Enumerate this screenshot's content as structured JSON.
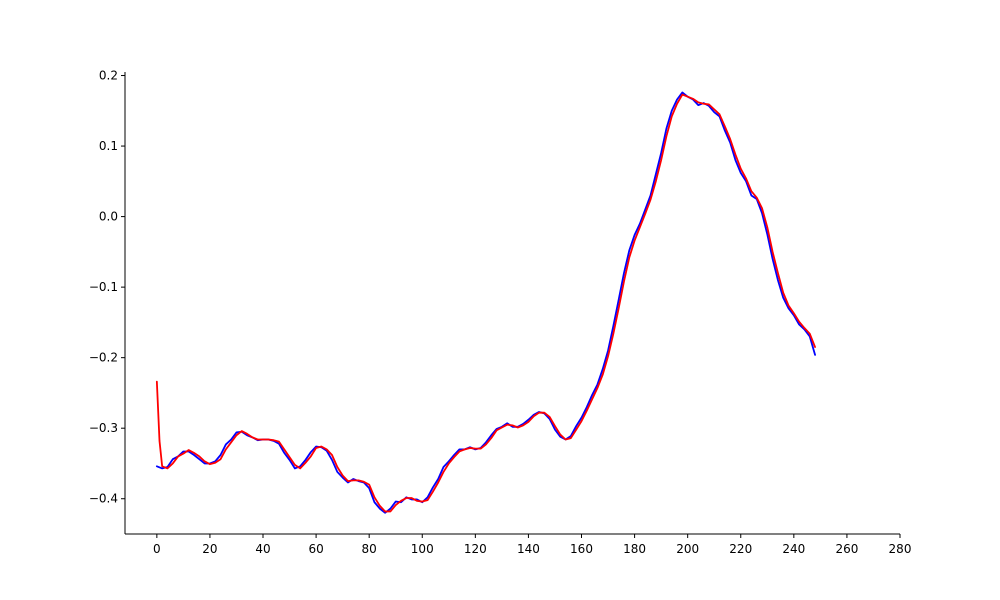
{
  "chart_data": {
    "type": "line",
    "title": "",
    "xlabel": "",
    "ylabel": "",
    "xlim": [
      -12,
      280
    ],
    "ylim": [
      -0.45,
      0.205
    ],
    "xticks": [
      0,
      20,
      40,
      60,
      80,
      100,
      120,
      140,
      160,
      180,
      200,
      220,
      240,
      260,
      280
    ],
    "xtick_labels": [
      "0",
      "20",
      "40",
      "60",
      "80",
      "100",
      "120",
      "140",
      "160",
      "180",
      "200",
      "220",
      "240",
      "260",
      "280"
    ],
    "yticks": [
      -0.4,
      -0.3,
      -0.2,
      -0.1,
      0.0,
      0.1,
      0.2
    ],
    "ytick_labels": [
      "−0.4",
      "−0.3",
      "−0.2",
      "−0.1",
      "0.0",
      "0.1",
      "0.2"
    ],
    "grid": false,
    "spines": [
      "left",
      "bottom"
    ],
    "series": [
      {
        "color": "#0000ff",
        "points": [
          [
            0,
            -0.354
          ],
          [
            2,
            -0.357
          ],
          [
            4,
            -0.355
          ],
          [
            6,
            -0.344
          ],
          [
            8,
            -0.34
          ],
          [
            10,
            -0.333
          ],
          [
            12,
            -0.333
          ],
          [
            14,
            -0.338
          ],
          [
            16,
            -0.344
          ],
          [
            18,
            -0.35
          ],
          [
            20,
            -0.35
          ],
          [
            22,
            -0.347
          ],
          [
            24,
            -0.338
          ],
          [
            26,
            -0.323
          ],
          [
            28,
            -0.316
          ],
          [
            30,
            -0.306
          ],
          [
            32,
            -0.305
          ],
          [
            34,
            -0.31
          ],
          [
            36,
            -0.313
          ],
          [
            38,
            -0.317
          ],
          [
            40,
            -0.316
          ],
          [
            42,
            -0.316
          ],
          [
            44,
            -0.318
          ],
          [
            46,
            -0.322
          ],
          [
            48,
            -0.335
          ],
          [
            50,
            -0.345
          ],
          [
            52,
            -0.357
          ],
          [
            54,
            -0.354
          ],
          [
            56,
            -0.345
          ],
          [
            58,
            -0.334
          ],
          [
            60,
            -0.326
          ],
          [
            62,
            -0.327
          ],
          [
            64,
            -0.332
          ],
          [
            66,
            -0.345
          ],
          [
            68,
            -0.362
          ],
          [
            70,
            -0.37
          ],
          [
            72,
            -0.377
          ],
          [
            74,
            -0.372
          ],
          [
            76,
            -0.375
          ],
          [
            78,
            -0.377
          ],
          [
            80,
            -0.385
          ],
          [
            82,
            -0.405
          ],
          [
            84,
            -0.414
          ],
          [
            86,
            -0.42
          ],
          [
            88,
            -0.414
          ],
          [
            90,
            -0.404
          ],
          [
            92,
            -0.405
          ],
          [
            94,
            -0.398
          ],
          [
            96,
            -0.401
          ],
          [
            98,
            -0.401
          ],
          [
            100,
            -0.405
          ],
          [
            102,
            -0.398
          ],
          [
            104,
            -0.384
          ],
          [
            106,
            -0.372
          ],
          [
            108,
            -0.355
          ],
          [
            110,
            -0.347
          ],
          [
            112,
            -0.338
          ],
          [
            114,
            -0.33
          ],
          [
            116,
            -0.33
          ],
          [
            118,
            -0.327
          ],
          [
            120,
            -0.33
          ],
          [
            122,
            -0.328
          ],
          [
            124,
            -0.32
          ],
          [
            126,
            -0.31
          ],
          [
            128,
            -0.301
          ],
          [
            130,
            -0.298
          ],
          [
            132,
            -0.293
          ],
          [
            134,
            -0.298
          ],
          [
            136,
            -0.298
          ],
          [
            138,
            -0.294
          ],
          [
            140,
            -0.288
          ],
          [
            142,
            -0.281
          ],
          [
            144,
            -0.277
          ],
          [
            146,
            -0.279
          ],
          [
            148,
            -0.287
          ],
          [
            150,
            -0.302
          ],
          [
            152,
            -0.312
          ],
          [
            154,
            -0.316
          ],
          [
            156,
            -0.311
          ],
          [
            158,
            -0.297
          ],
          [
            160,
            -0.285
          ],
          [
            162,
            -0.27
          ],
          [
            164,
            -0.253
          ],
          [
            166,
            -0.238
          ],
          [
            168,
            -0.216
          ],
          [
            170,
            -0.19
          ],
          [
            172,
            -0.155
          ],
          [
            174,
            -0.118
          ],
          [
            176,
            -0.08
          ],
          [
            178,
            -0.048
          ],
          [
            180,
            -0.026
          ],
          [
            182,
            -0.01
          ],
          [
            184,
            0.01
          ],
          [
            186,
            0.03
          ],
          [
            188,
            0.06
          ],
          [
            190,
            0.09
          ],
          [
            192,
            0.125
          ],
          [
            194,
            0.15
          ],
          [
            196,
            0.166
          ],
          [
            198,
            0.176
          ],
          [
            200,
            0.17
          ],
          [
            202,
            0.166
          ],
          [
            204,
            0.158
          ],
          [
            206,
            0.161
          ],
          [
            208,
            0.157
          ],
          [
            210,
            0.148
          ],
          [
            212,
            0.142
          ],
          [
            214,
            0.122
          ],
          [
            216,
            0.105
          ],
          [
            218,
            0.08
          ],
          [
            220,
            0.062
          ],
          [
            222,
            0.05
          ],
          [
            224,
            0.03
          ],
          [
            226,
            0.025
          ],
          [
            228,
            0.005
          ],
          [
            230,
            -0.025
          ],
          [
            232,
            -0.06
          ],
          [
            234,
            -0.09
          ],
          [
            236,
            -0.115
          ],
          [
            238,
            -0.13
          ],
          [
            240,
            -0.14
          ],
          [
            242,
            -0.153
          ],
          [
            244,
            -0.16
          ],
          [
            246,
            -0.17
          ],
          [
            248,
            -0.196
          ]
        ]
      },
      {
        "color": "#ff0000",
        "points": [
          [
            0,
            -0.234
          ],
          [
            1,
            -0.318
          ],
          [
            2,
            -0.354
          ],
          [
            4,
            -0.357
          ],
          [
            6,
            -0.35
          ],
          [
            8,
            -0.34
          ],
          [
            10,
            -0.336
          ],
          [
            12,
            -0.331
          ],
          [
            14,
            -0.335
          ],
          [
            16,
            -0.34
          ],
          [
            18,
            -0.347
          ],
          [
            20,
            -0.351
          ],
          [
            22,
            -0.349
          ],
          [
            24,
            -0.344
          ],
          [
            26,
            -0.33
          ],
          [
            28,
            -0.32
          ],
          [
            30,
            -0.31
          ],
          [
            32,
            -0.304
          ],
          [
            34,
            -0.308
          ],
          [
            36,
            -0.313
          ],
          [
            38,
            -0.316
          ],
          [
            40,
            -0.316
          ],
          [
            42,
            -0.316
          ],
          [
            44,
            -0.317
          ],
          [
            46,
            -0.319
          ],
          [
            48,
            -0.33
          ],
          [
            50,
            -0.341
          ],
          [
            52,
            -0.352
          ],
          [
            54,
            -0.357
          ],
          [
            56,
            -0.349
          ],
          [
            58,
            -0.34
          ],
          [
            60,
            -0.328
          ],
          [
            62,
            -0.326
          ],
          [
            64,
            -0.33
          ],
          [
            66,
            -0.338
          ],
          [
            68,
            -0.355
          ],
          [
            70,
            -0.367
          ],
          [
            72,
            -0.375
          ],
          [
            74,
            -0.374
          ],
          [
            76,
            -0.374
          ],
          [
            78,
            -0.376
          ],
          [
            80,
            -0.38
          ],
          [
            82,
            -0.398
          ],
          [
            84,
            -0.41
          ],
          [
            86,
            -0.418
          ],
          [
            88,
            -0.418
          ],
          [
            90,
            -0.409
          ],
          [
            92,
            -0.403
          ],
          [
            94,
            -0.399
          ],
          [
            96,
            -0.399
          ],
          [
            98,
            -0.403
          ],
          [
            100,
            -0.404
          ],
          [
            102,
            -0.402
          ],
          [
            104,
            -0.39
          ],
          [
            106,
            -0.377
          ],
          [
            108,
            -0.362
          ],
          [
            110,
            -0.35
          ],
          [
            112,
            -0.341
          ],
          [
            114,
            -0.333
          ],
          [
            116,
            -0.33
          ],
          [
            118,
            -0.328
          ],
          [
            120,
            -0.329
          ],
          [
            122,
            -0.329
          ],
          [
            124,
            -0.323
          ],
          [
            126,
            -0.314
          ],
          [
            128,
            -0.303
          ],
          [
            130,
            -0.299
          ],
          [
            132,
            -0.295
          ],
          [
            134,
            -0.296
          ],
          [
            136,
            -0.299
          ],
          [
            138,
            -0.296
          ],
          [
            140,
            -0.291
          ],
          [
            142,
            -0.283
          ],
          [
            144,
            -0.278
          ],
          [
            146,
            -0.278
          ],
          [
            148,
            -0.284
          ],
          [
            150,
            -0.297
          ],
          [
            152,
            -0.309
          ],
          [
            154,
            -0.316
          ],
          [
            156,
            -0.314
          ],
          [
            158,
            -0.302
          ],
          [
            160,
            -0.29
          ],
          [
            162,
            -0.275
          ],
          [
            164,
            -0.259
          ],
          [
            166,
            -0.243
          ],
          [
            168,
            -0.224
          ],
          [
            170,
            -0.198
          ],
          [
            172,
            -0.166
          ],
          [
            174,
            -0.13
          ],
          [
            176,
            -0.092
          ],
          [
            178,
            -0.058
          ],
          [
            180,
            -0.034
          ],
          [
            182,
            -0.015
          ],
          [
            184,
            0.004
          ],
          [
            186,
            0.024
          ],
          [
            188,
            0.05
          ],
          [
            190,
            0.08
          ],
          [
            192,
            0.114
          ],
          [
            194,
            0.142
          ],
          [
            196,
            0.16
          ],
          [
            198,
            0.173
          ],
          [
            200,
            0.17
          ],
          [
            202,
            0.167
          ],
          [
            204,
            0.162
          ],
          [
            206,
            0.16
          ],
          [
            208,
            0.159
          ],
          [
            210,
            0.152
          ],
          [
            212,
            0.145
          ],
          [
            214,
            0.128
          ],
          [
            216,
            0.11
          ],
          [
            218,
            0.088
          ],
          [
            220,
            0.068
          ],
          [
            222,
            0.054
          ],
          [
            224,
            0.036
          ],
          [
            226,
            0.027
          ],
          [
            228,
            0.012
          ],
          [
            230,
            -0.015
          ],
          [
            232,
            -0.05
          ],
          [
            234,
            -0.08
          ],
          [
            236,
            -0.108
          ],
          [
            238,
            -0.126
          ],
          [
            240,
            -0.137
          ],
          [
            242,
            -0.149
          ],
          [
            244,
            -0.158
          ],
          [
            246,
            -0.166
          ],
          [
            248,
            -0.185
          ]
        ]
      }
    ]
  }
}
